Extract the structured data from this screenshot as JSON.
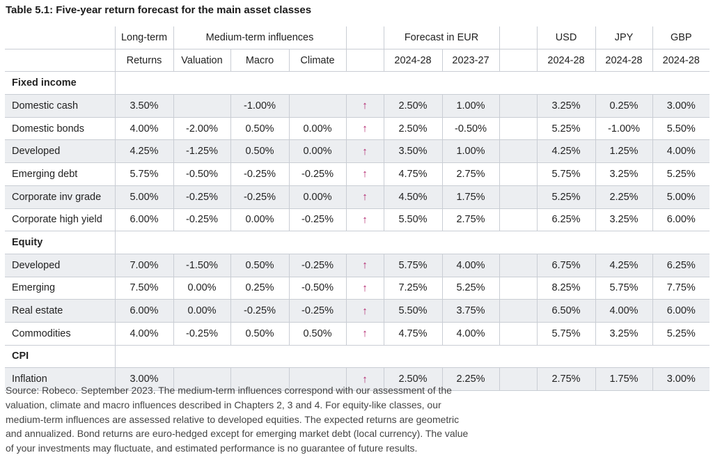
{
  "title": "Table 5.1: Five-year return forecast for the main asset classes",
  "header_row1": [
    "",
    "Long-term",
    "Medium-term influences",
    "",
    "Forecast in EUR",
    "",
    "USD",
    "JPY",
    "GBP"
  ],
  "header_row2": [
    "",
    "Returns",
    "Valuation",
    "Macro",
    "Climate",
    "",
    "2024-28",
    "2023-27",
    "",
    "2024-28",
    "2024-28",
    "2024-28"
  ],
  "arrow_symbol": "↑",
  "sections": [
    {
      "name": "Fixed income",
      "rows": [
        [
          "Domestic cash",
          "3.50%",
          "",
          "-1.00%",
          "",
          "2.50%",
          "1.00%",
          "3.25%",
          "0.25%",
          "3.00%"
        ],
        [
          "Domestic bonds",
          "4.00%",
          "-2.00%",
          "0.50%",
          "0.00%",
          "2.50%",
          "-0.50%",
          "5.25%",
          "-1.00%",
          "5.50%"
        ],
        [
          "Developed",
          "4.25%",
          "-1.25%",
          "0.50%",
          "0.00%",
          "3.50%",
          "1.00%",
          "4.25%",
          "1.25%",
          "4.00%"
        ],
        [
          "Emerging debt",
          "5.75%",
          "-0.50%",
          "-0.25%",
          "-0.25%",
          "4.75%",
          "2.75%",
          "5.75%",
          "3.25%",
          "5.25%"
        ],
        [
          "Corporate inv grade",
          "5.00%",
          "-0.25%",
          "-0.25%",
          "0.00%",
          "4.50%",
          "1.75%",
          "5.25%",
          "2.25%",
          "5.00%"
        ],
        [
          "Corporate high yield",
          "6.00%",
          "-0.25%",
          "0.00%",
          "-0.25%",
          "5.50%",
          "2.75%",
          "6.25%",
          "3.25%",
          "6.00%"
        ]
      ]
    },
    {
      "name": "Equity",
      "rows": [
        [
          "Developed",
          "7.00%",
          "-1.50%",
          "0.50%",
          "-0.25%",
          "5.75%",
          "4.00%",
          "6.75%",
          "4.25%",
          "6.25%"
        ],
        [
          "Emerging",
          "7.50%",
          "0.00%",
          "0.25%",
          "-0.50%",
          "7.25%",
          "5.25%",
          "8.25%",
          "5.75%",
          "7.75%"
        ],
        [
          "Real estate",
          "6.00%",
          "0.00%",
          "-0.25%",
          "-0.25%",
          "5.50%",
          "3.75%",
          "6.50%",
          "4.00%",
          "6.00%"
        ],
        [
          "Commodities",
          "4.00%",
          "-0.25%",
          "0.50%",
          "0.50%",
          "4.75%",
          "4.00%",
          "5.75%",
          "3.25%",
          "5.25%"
        ]
      ]
    },
    {
      "name": "CPI",
      "rows": [
        [
          "Inflation",
          "3.00%",
          "",
          "",
          "",
          "2.50%",
          "2.25%",
          "2.75%",
          "1.75%",
          "3.00%"
        ]
      ]
    }
  ],
  "source_lines": [
    "Source: Robeco. September 2023. The medium-term influences correspond with our assessment of the",
    "valuation, climate and macro influences described in Chapters 2, 3 and 4. For equity-like classes, our",
    "medium-term influences are assessed relative to developed equities. The expected returns are geometric",
    "and annualized. Bond returns are euro-hedged except for emerging market debt (local currency). The value",
    "of your investments may fluctuate, and estimated performance is no guarantee of future results."
  ]
}
